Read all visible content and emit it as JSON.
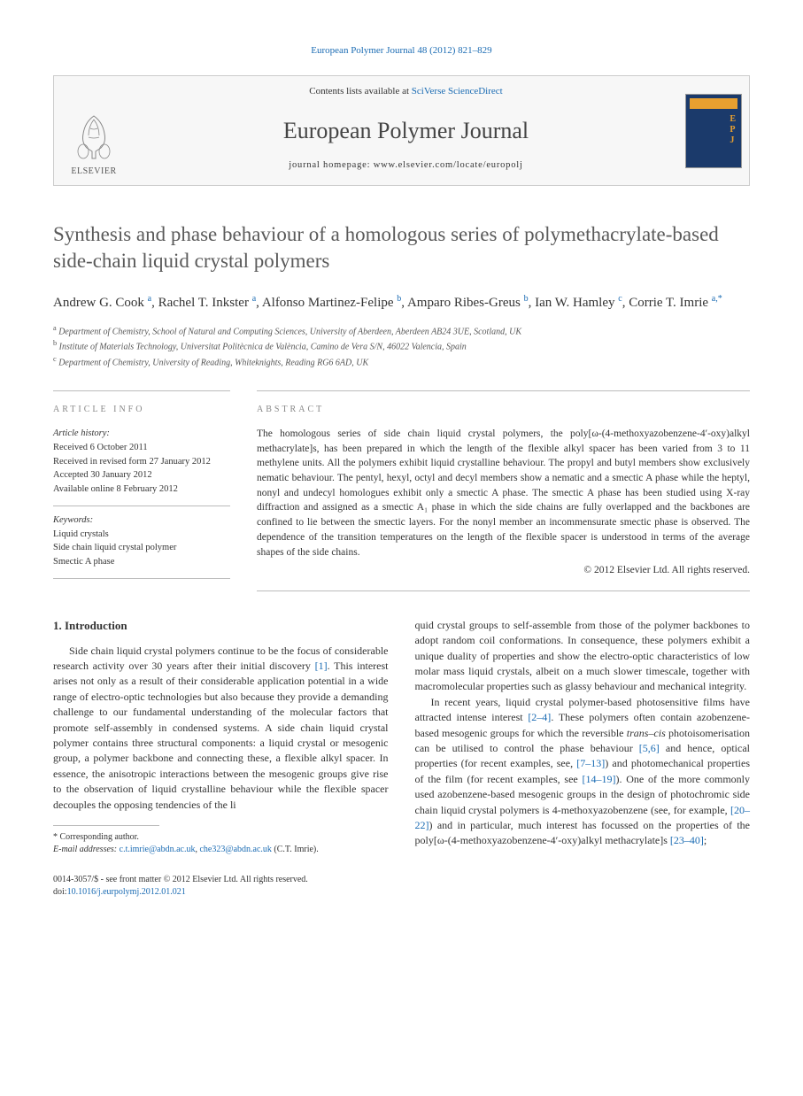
{
  "header": {
    "citation": "European Polymer Journal 48 (2012) 821–829"
  },
  "banner": {
    "contents_prefix": "Contents lists available at ",
    "contents_link": "SciVerse ScienceDirect",
    "journal": "European Polymer Journal",
    "homepage_prefix": "journal homepage: ",
    "homepage_url": "www.elsevier.com/locate/europolj",
    "publisher": "ELSEVIER"
  },
  "title": "Synthesis and phase behaviour of a homologous series of polymethacrylate-based side-chain liquid crystal polymers",
  "authors_html": "Andrew G. Cook <sup>a</sup>, Rachel T. Inkster <sup>a</sup>, Alfonso Martinez-Felipe <sup>b</sup>, Amparo Ribes-Greus <sup>b</sup>, Ian W. Hamley <sup>c</sup>, Corrie T. Imrie <sup>a,*</sup>",
  "affiliations": {
    "a": "Department of Chemistry, School of Natural and Computing Sciences, University of Aberdeen, Aberdeen AB24 3UE, Scotland, UK",
    "b": "Institute of Materials Technology, Universitat Politècnica de València, Camino de Vera S/N, 46022 Valencia, Spain",
    "c": "Department of Chemistry, University of Reading, Whiteknights, Reading RG6 6AD, UK"
  },
  "article_info": {
    "label": "ARTICLE INFO",
    "history_label": "Article history:",
    "received": "Received 6 October 2011",
    "revised": "Received in revised form 27 January 2012",
    "accepted": "Accepted 30 January 2012",
    "online": "Available online 8 February 2012",
    "keywords_label": "Keywords:",
    "keywords": [
      "Liquid crystals",
      "Side chain liquid crystal polymer",
      "Smectic A phase"
    ]
  },
  "abstract": {
    "label": "ABSTRACT",
    "text": "The homologous series of side chain liquid crystal polymers, the poly[ω-(4-methoxyazobenzene-4′-oxy)alkyl methacrylate]s, has been prepared in which the length of the flexible alkyl spacer has been varied from 3 to 11 methylene units. All the polymers exhibit liquid crystalline behaviour. The propyl and butyl members show exclusively nematic behaviour. The pentyl, hexyl, octyl and decyl members show a nematic and a smectic A phase while the heptyl, nonyl and undecyl homologues exhibit only a smectic A phase. The smectic A phase has been studied using X-ray diffraction and assigned as a smectic A₁ phase in which the side chains are fully overlapped and the backbones are confined to lie between the smectic layers. For the nonyl member an incommensurate smectic phase is observed. The dependence of the transition temperatures on the length of the flexible spacer is understood in terms of the average shapes of the side chains.",
    "copyright": "© 2012 Elsevier Ltd. All rights reserved."
  },
  "body": {
    "heading": "1. Introduction",
    "p1": "Side chain liquid crystal polymers continue to be the focus of considerable research activity over 30 years after their initial discovery [1]. This interest arises not only as a result of their considerable application potential in a wide range of electro-optic technologies but also because they provide a demanding challenge to our fundamental understanding of the molecular factors that promote self-assembly in condensed systems. A side chain liquid crystal polymer contains three structural components: a liquid crystal or mesogenic group, a polymer backbone and connecting these, a flexible alkyl spacer. In essence, the anisotropic interactions between the mesogenic groups give rise to the observation of liquid crystalline behaviour while the flexible spacer decouples the opposing tendencies of the li",
    "p1b": "quid crystal groups to self-assemble from those of the polymer backbones to adopt random coil conformations. In consequence, these polymers exhibit a unique duality of properties and show the electro-optic characteristics of low molar mass liquid crystals, albeit on a much slower timescale, together with macromolecular properties such as glassy behaviour and mechanical integrity.",
    "p2": "In recent years, liquid crystal polymer-based photosensitive films have attracted intense interest [2–4]. These polymers often contain azobenzene-based mesogenic groups for which the reversible trans–cis photoisomerisation can be utilised to control the phase behaviour [5,6] and hence, optical properties (for recent examples, see, [7–13]) and photomechanical properties of the film (for recent examples, see [14–19]). One of the more commonly used azobenzene-based mesogenic groups in the design of photochromic side chain liquid crystal polymers is 4-methoxyazobenzene (see, for example, [20–22]) and in particular, much interest has focussed on the properties of the poly[ω-(4-methoxyazobenzene-4′-oxy)alkyl methacrylate]s [23–40];"
  },
  "footnotes": {
    "corr": "* Corresponding author.",
    "email_label": "E-mail addresses:",
    "email1": "c.t.imrie@abdn.ac.uk",
    "email2": "che323@abdn.ac.uk",
    "email_tail": "(C.T. Imrie)."
  },
  "bottom": {
    "issn": "0014-3057/$ - see front matter © 2012 Elsevier Ltd. All rights reserved.",
    "doi_label": "doi:",
    "doi": "10.1016/j.eurpolymj.2012.01.021"
  },
  "colors": {
    "link": "#1a6bb3",
    "text": "#333333",
    "muted": "#888888",
    "rule": "#bbbbbb",
    "cover_bg": "#1b3a6b",
    "cover_accent": "#e8a030"
  }
}
